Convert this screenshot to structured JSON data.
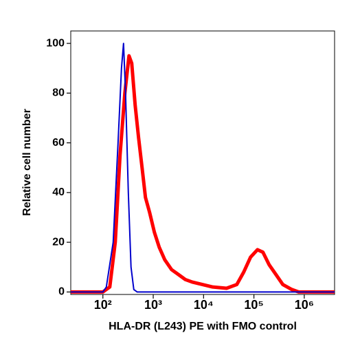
{
  "chart_data": {
    "type": "line",
    "xlabel": "HLA-DR (L243) PE with FMO control",
    "ylabel": "Relative cell number",
    "xscale": "log",
    "xlim": [
      23,
      4000000
    ],
    "xticks": [
      {
        "value": 100,
        "label": "10²"
      },
      {
        "value": 1000,
        "label": "10³"
      },
      {
        "value": 10000,
        "label": "10⁴"
      },
      {
        "value": 100000,
        "label": "10⁵"
      },
      {
        "value": 1000000,
        "label": "10⁶"
      }
    ],
    "ylim": [
      -1,
      105
    ],
    "yticks": [
      0,
      20,
      40,
      60,
      80,
      100
    ],
    "series": [
      {
        "color": "#ff0000",
        "x": [
          23,
          100,
          137,
          176,
          219,
          273,
          330,
          374,
          438,
          512,
          600,
          701,
          847,
          1055,
          1315,
          1690,
          2313,
          3170,
          4340,
          5940,
          9510,
          15200,
          28600,
          45700,
          62700,
          85700,
          117500,
          151000,
          200000,
          274000,
          375000,
          565000,
          773000,
          4000000
        ],
        "values": [
          0,
          0,
          2,
          20,
          55,
          80,
          95,
          92,
          75,
          62,
          50,
          38,
          32,
          24,
          18,
          13,
          9,
          7,
          5,
          4,
          3,
          2,
          1.5,
          3,
          8,
          14,
          17,
          16,
          11,
          7,
          3,
          1,
          0,
          0
        ]
      },
      {
        "color": "#0000cc",
        "x": [
          23,
          100,
          117,
          160,
          200,
          234,
          257,
          282,
          320,
          362,
          411,
          481,
          4000000
        ],
        "values": [
          0,
          0,
          2,
          20,
          60,
          90,
          100,
          80,
          40,
          10,
          1,
          0,
          0
        ]
      }
    ]
  }
}
